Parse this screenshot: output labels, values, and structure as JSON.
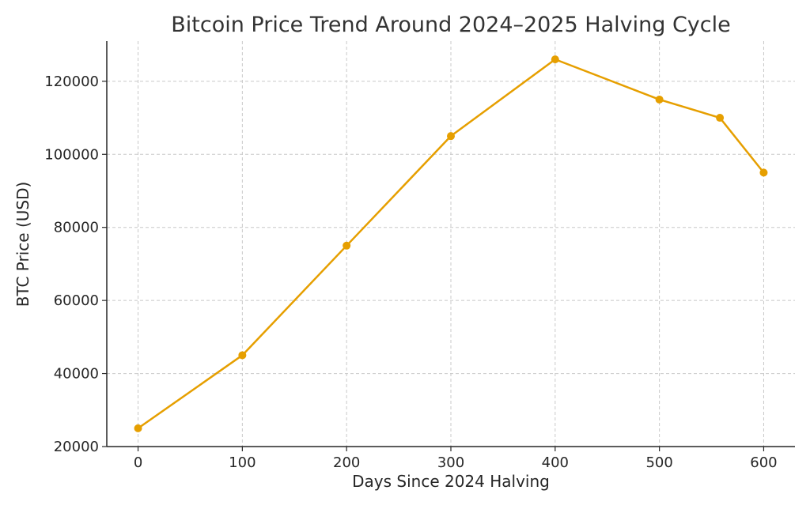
{
  "chart_data": {
    "type": "line",
    "title": "Bitcoin Price Trend Around 2024–2025 Halving Cycle",
    "xlabel": "Days Since 2024 Halving",
    "ylabel": "BTC Price (USD)",
    "xlim": [
      -30,
      630
    ],
    "ylim": [
      20000,
      131000
    ],
    "xticks": [
      0,
      100,
      200,
      300,
      400,
      500,
      600
    ],
    "yticks": [
      20000,
      40000,
      60000,
      80000,
      100000,
      120000
    ],
    "grid": true,
    "series": [
      {
        "color": "#e69f00",
        "points": [
          {
            "x": 0,
            "y": 25000
          },
          {
            "x": 100,
            "y": 45000
          },
          {
            "x": 200,
            "y": 75000
          },
          {
            "x": 300,
            "y": 105000
          },
          {
            "x": 400,
            "y": 126000
          },
          {
            "x": 500,
            "y": 115000
          },
          {
            "x": 558,
            "y": 110000
          },
          {
            "x": 600,
            "y": 95000
          }
        ]
      }
    ]
  }
}
